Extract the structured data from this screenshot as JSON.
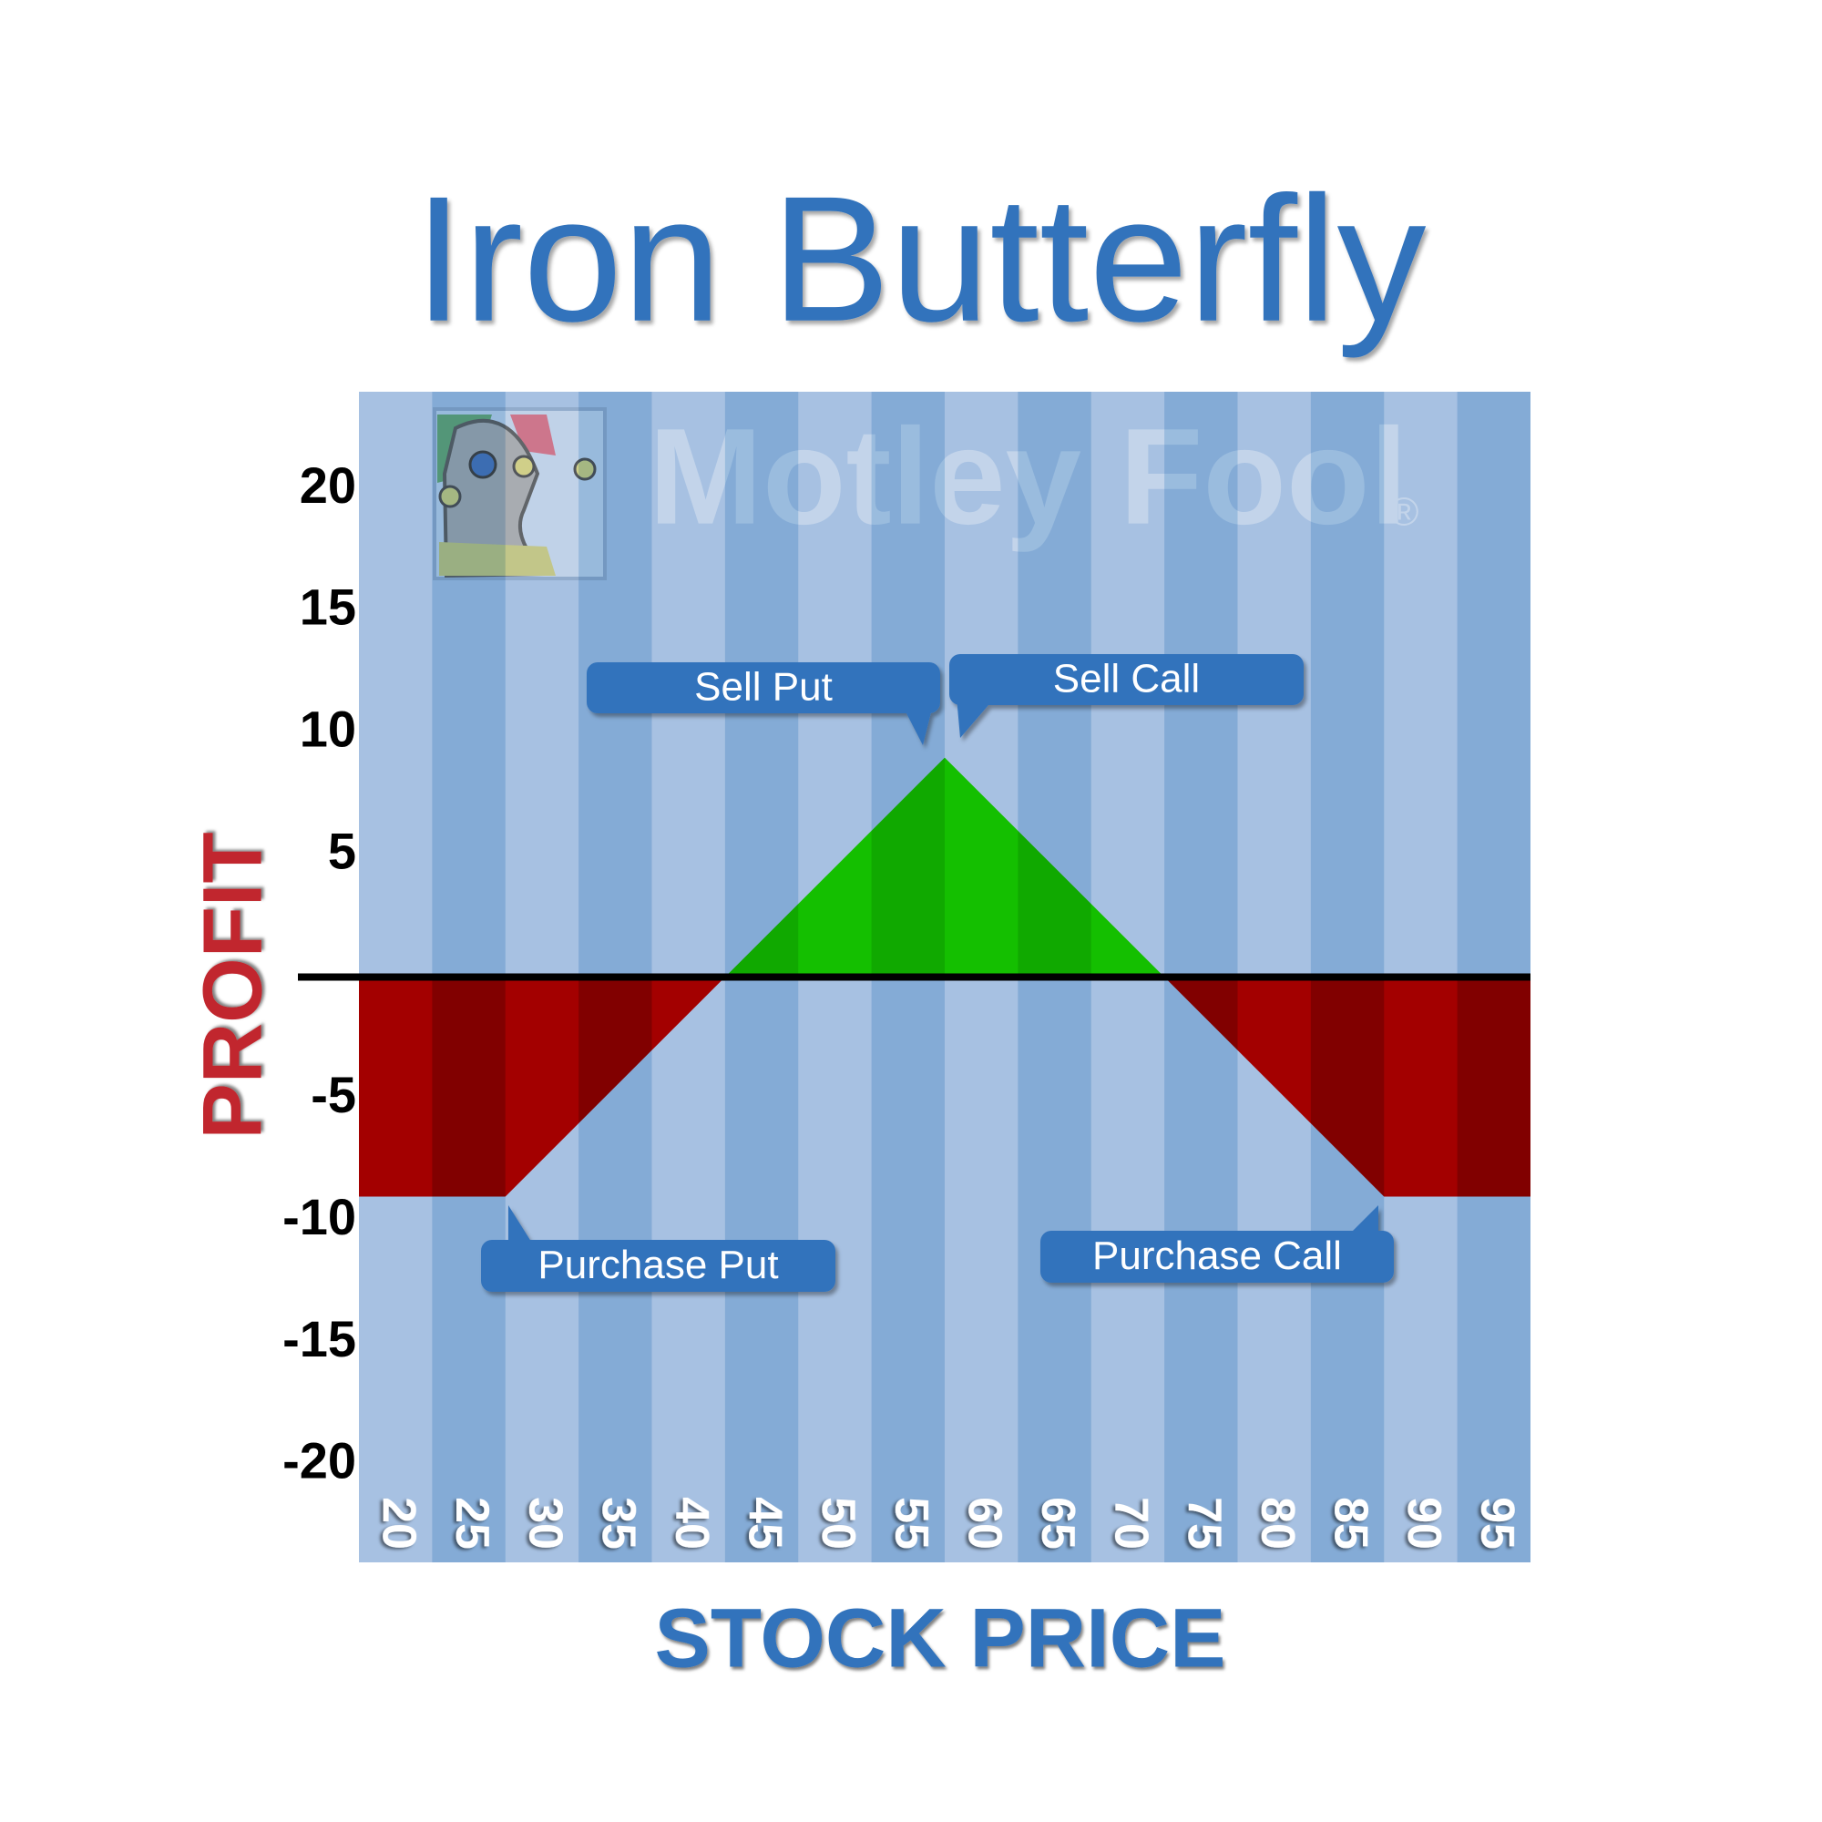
{
  "chart_data": {
    "type": "area",
    "title": "Iron Butterfly",
    "x_label": "STOCK PRICE",
    "y_label": "PROFIT",
    "x": [
      20,
      30,
      45,
      60,
      75,
      90,
      100
    ],
    "values": [
      -9,
      -9,
      0,
      9,
      0,
      -9,
      -9
    ],
    "color_positive": "#14bf00",
    "color_negative": "#a30000",
    "xlim": [
      20,
      100
    ],
    "xticks": [
      20,
      25,
      30,
      35,
      40,
      45,
      50,
      55,
      60,
      65,
      70,
      75,
      80,
      85,
      90,
      95
    ],
    "ylim": [
      -24,
      24
    ],
    "yticks": [
      -20,
      -15,
      -10,
      -5,
      5,
      10,
      15,
      20
    ],
    "grid": false,
    "annotations": [
      "Sell Put",
      "Sell Call",
      "Purchase Put",
      "Purchase Call"
    ],
    "watermark": {
      "text": "Motley Fool",
      "mark": "®"
    }
  }
}
